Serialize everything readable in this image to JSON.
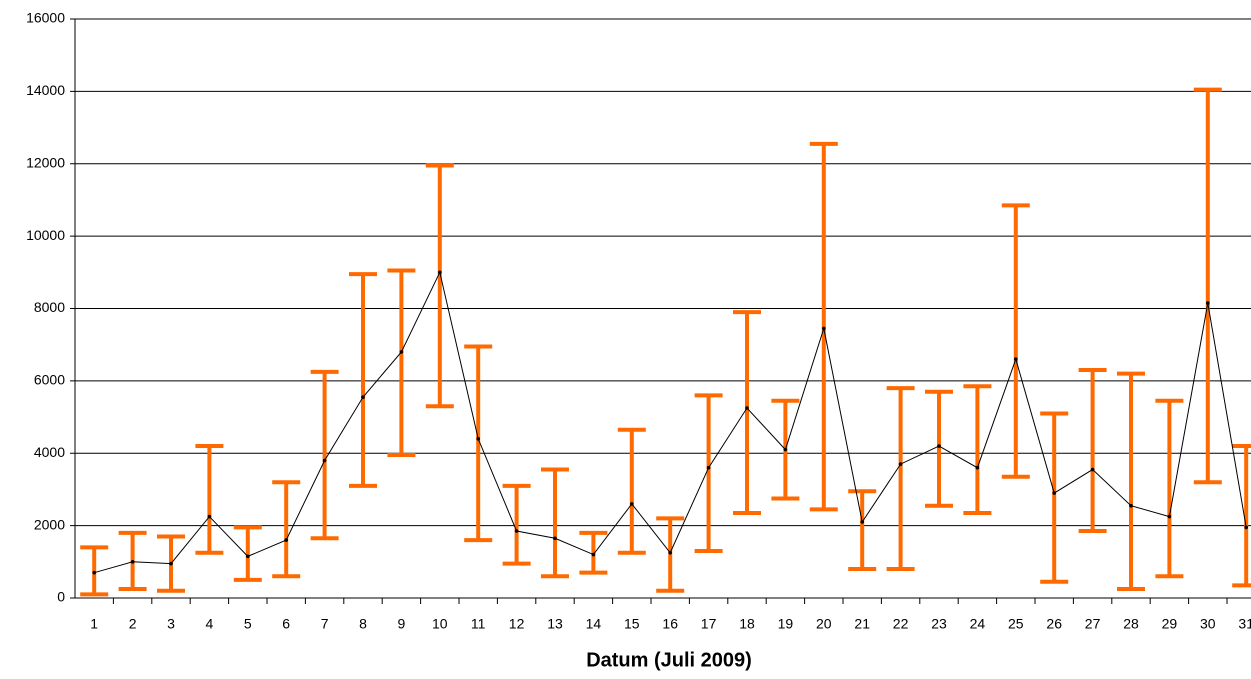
{
  "chart_data": {
    "type": "line-errorbar",
    "x_label": "Datum (Juli 2009)",
    "categories": [
      "1",
      "2",
      "3",
      "4",
      "5",
      "6",
      "7",
      "8",
      "9",
      "10",
      "11",
      "12",
      "13",
      "14",
      "15",
      "16",
      "17",
      "18",
      "19",
      "20",
      "21",
      "22",
      "23",
      "24",
      "25",
      "26",
      "27",
      "28",
      "29",
      "30",
      "31"
    ],
    "series": [
      {
        "color": "#000000",
        "error_color": "#ff6a00",
        "values": [
          700,
          1000,
          950,
          2250,
          1150,
          1600,
          3800,
          5550,
          6800,
          9000,
          4400,
          1850,
          1650,
          1200,
          2600,
          1250,
          3600,
          5250,
          4100,
          7450,
          2100,
          3700,
          4200,
          3600,
          6600,
          2900,
          3550,
          2550,
          2250,
          8150,
          1950
        ],
        "error_low": [
          100,
          250,
          200,
          1250,
          500,
          600,
          1650,
          3100,
          3950,
          5300,
          1600,
          950,
          600,
          700,
          1250,
          200,
          1300,
          2350,
          2750,
          2450,
          800,
          800,
          2550,
          2350,
          3350,
          450,
          1850,
          250,
          600,
          3200,
          350
        ],
        "error_high": [
          1400,
          1800,
          1700,
          4200,
          1950,
          3200,
          6250,
          8950,
          9050,
          11950,
          6950,
          3100,
          3550,
          1800,
          4650,
          2200,
          5600,
          7900,
          5450,
          12550,
          2950,
          5800,
          5700,
          5850,
          10850,
          5100,
          6300,
          6200,
          5450,
          14050,
          4200
        ]
      }
    ],
    "ylim": [
      0,
      16000
    ],
    "yticks": [
      0,
      2000,
      4000,
      6000,
      8000,
      10000,
      12000,
      14000,
      16000
    ],
    "grid": true
  }
}
